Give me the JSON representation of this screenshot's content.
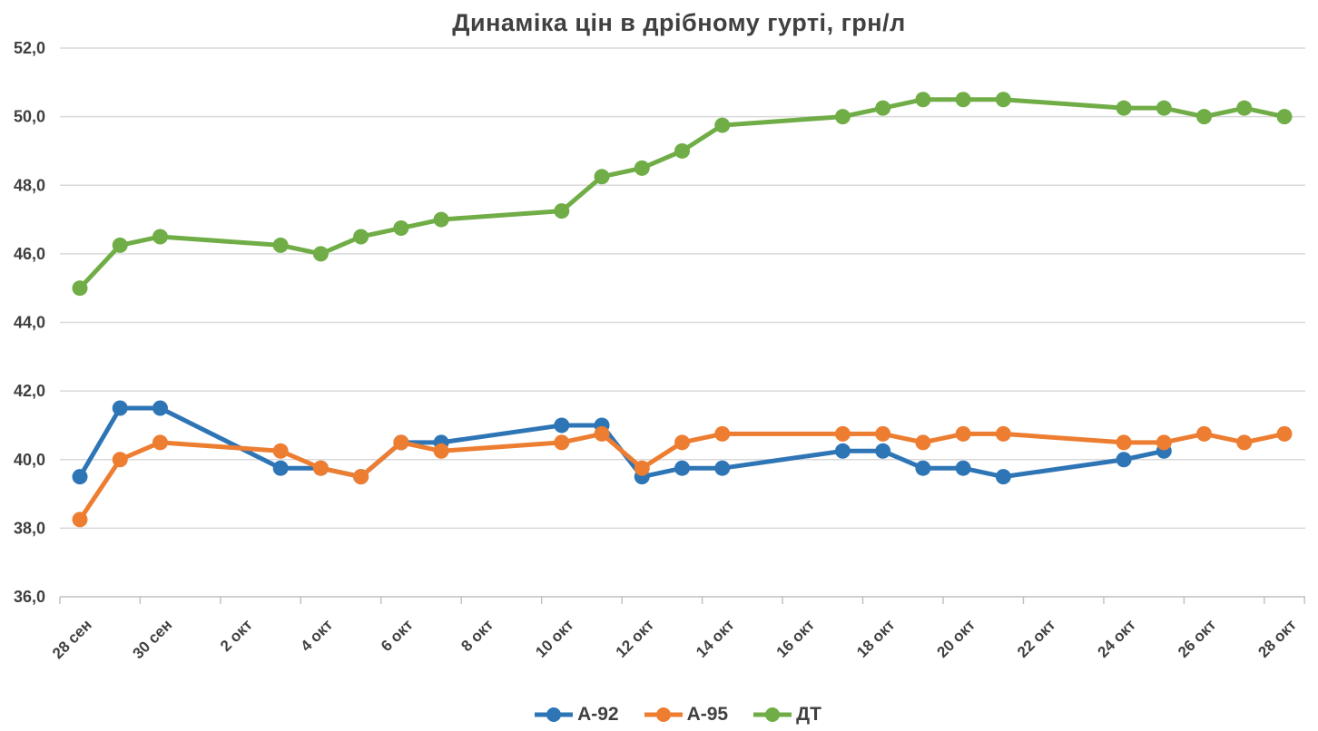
{
  "title": "Динаміка цін в дрібному гурті, грн/л",
  "chart_data": {
    "type": "line",
    "title": "Динаміка цін в дрібному гурті, грн/л",
    "xlabel": "",
    "ylabel": "",
    "ylim": [
      36,
      52
    ],
    "y_step": 2,
    "grid": "horizontal",
    "legend_position": "bottom",
    "y_ticks": [
      "52,0",
      "50,0",
      "48,0",
      "46,0",
      "44,0",
      "42,0",
      "40,0",
      "38,0",
      "36,0"
    ],
    "x_tick_labels": [
      "28 сен",
      "30 сен",
      "2 окт",
      "4 окт",
      "6 окт",
      "8 окт",
      "10 окт",
      "12 окт",
      "14 окт",
      "16 окт",
      "18 окт",
      "20 окт",
      "22 окт",
      "24 окт",
      "26 окт",
      "28 окт"
    ],
    "categories": [
      "28 сен",
      "29 сен",
      "30 сен",
      "3 окт",
      "4 окт",
      "5 окт",
      "6 окт",
      "7 окт",
      "10 окт",
      "11 окт",
      "12 окт",
      "13 окт",
      "14 окт",
      "17 окт",
      "18 окт",
      "19 окт",
      "20 окт",
      "21 окт",
      "24 окт",
      "25 окт",
      "26 окт",
      "27 окт",
      "28 окт"
    ],
    "day_offsets": [
      0,
      1,
      2,
      5,
      6,
      7,
      8,
      9,
      12,
      13,
      14,
      15,
      16,
      19,
      20,
      21,
      22,
      23,
      26,
      27,
      28,
      29,
      30
    ],
    "series": [
      {
        "name": "А-92",
        "color": "#2E75B6",
        "values": [
          39.5,
          41.5,
          41.5,
          39.75,
          39.75,
          39.5,
          40.5,
          40.5,
          41.0,
          41.0,
          39.5,
          39.75,
          39.75,
          40.25,
          40.25,
          39.75,
          39.75,
          39.5,
          40.0,
          40.25,
          null,
          null,
          null
        ]
      },
      {
        "name": "А-95",
        "color": "#ED7D31",
        "values": [
          38.25,
          40.0,
          40.5,
          40.25,
          39.75,
          39.5,
          40.5,
          40.25,
          40.5,
          40.75,
          39.75,
          40.5,
          40.75,
          40.75,
          40.75,
          40.5,
          40.75,
          40.75,
          40.5,
          40.5,
          40.75,
          40.5,
          40.75
        ]
      },
      {
        "name": "ДТ",
        "color": "#70AD47",
        "values": [
          45.0,
          46.25,
          46.5,
          46.25,
          46.0,
          46.5,
          46.75,
          47.0,
          47.25,
          48.25,
          48.5,
          49.0,
          49.75,
          50.0,
          50.25,
          50.5,
          50.5,
          50.5,
          50.25,
          50.25,
          50.0,
          50.25,
          50.0
        ]
      }
    ],
    "colors": {
      "gridline": "#D9D9D9",
      "axis": "#BFBFBF",
      "label": "#404040"
    }
  }
}
